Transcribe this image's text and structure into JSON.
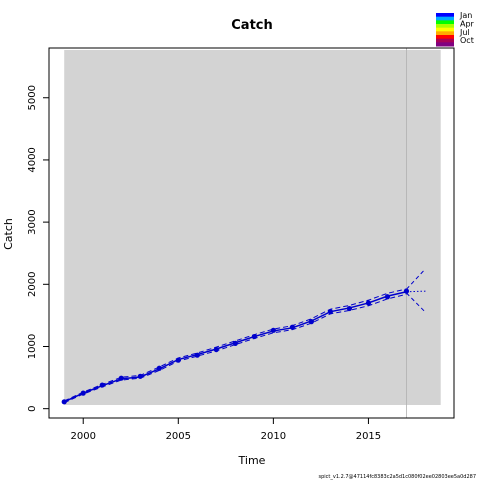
{
  "chart_data": {
    "type": "line",
    "title": "Catch",
    "xlabel": "Time",
    "ylabel": "Catch",
    "xlim": [
      1998.2,
      2019.5
    ],
    "ylim": [
      -150,
      5800
    ],
    "xticks": [
      2000,
      2005,
      2010,
      2015
    ],
    "yticks": [
      0,
      1000,
      2000,
      3000,
      4000,
      5000
    ],
    "shaded_region": [
      1999,
      2018.8
    ],
    "vline_x": 2017,
    "observed": {
      "x": [
        1999,
        2000,
        2001,
        2002,
        2003,
        2004,
        2005,
        2006,
        2007,
        2008,
        2009,
        2010,
        2011,
        2012,
        2013,
        2014,
        2015,
        2016,
        2017
      ],
      "y": [
        110,
        250,
        380,
        490,
        520,
        650,
        780,
        860,
        950,
        1050,
        1160,
        1260,
        1310,
        1400,
        1560,
        1610,
        1700,
        1800,
        1890
      ]
    },
    "fitted": {
      "x": [
        1999,
        2000,
        2001,
        2002,
        2003,
        2004,
        2005,
        2006,
        2007,
        2008,
        2009,
        2010,
        2011,
        2012,
        2013,
        2014,
        2015,
        2016,
        2017
      ],
      "y": [
        110,
        250,
        370,
        480,
        510,
        640,
        790,
        870,
        960,
        1060,
        1160,
        1250,
        1300,
        1410,
        1560,
        1620,
        1700,
        1810,
        1880
      ]
    },
    "ci_upper": {
      "x": [
        1999,
        2000,
        2001,
        2002,
        2003,
        2004,
        2005,
        2006,
        2007,
        2008,
        2009,
        2010,
        2011,
        2012,
        2013,
        2014,
        2015,
        2016,
        2017
      ],
      "y": [
        125,
        265,
        390,
        505,
        535,
        670,
        815,
        895,
        990,
        1090,
        1190,
        1280,
        1335,
        1445,
        1600,
        1660,
        1745,
        1855,
        1925
      ]
    },
    "ci_lower": {
      "x": [
        1999,
        2000,
        2001,
        2002,
        2003,
        2004,
        2005,
        2006,
        2007,
        2008,
        2009,
        2010,
        2011,
        2012,
        2013,
        2014,
        2015,
        2016,
        2017
      ],
      "y": [
        95,
        235,
        350,
        460,
        490,
        615,
        765,
        845,
        930,
        1030,
        1130,
        1220,
        1270,
        1375,
        1525,
        1580,
        1655,
        1765,
        1840
      ]
    },
    "forecast": {
      "x": [
        2017,
        2018
      ],
      "mean": [
        1880,
        1890
      ],
      "upper": [
        1920,
        2250
      ],
      "lower": [
        1860,
        1550
      ]
    },
    "legend": {
      "labels": [
        "Jan",
        "Apr",
        "Jul",
        "Oct"
      ],
      "colors": [
        "#0000ff",
        "#00aaff",
        "#00ff00",
        "#aaff00",
        "#ffff00",
        "#ffaa00",
        "#ff0000",
        "#aa0055",
        "#800080"
      ]
    },
    "series_color": "#0000cc"
  },
  "footer": "spict_v1.2.7@47114fc8383c2a5d1c080f02ee02803ee5a0d287"
}
